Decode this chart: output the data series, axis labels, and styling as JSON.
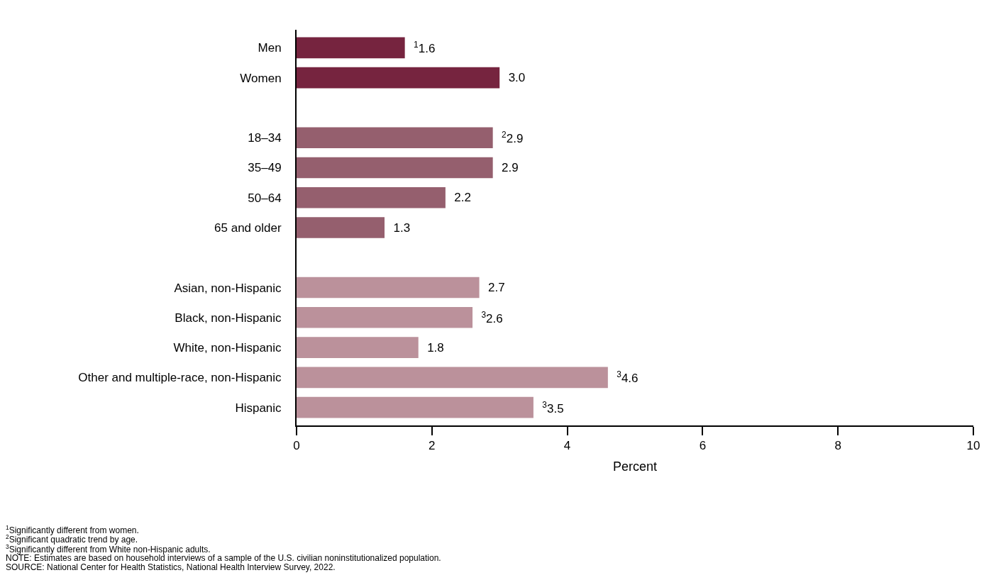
{
  "chart_data": {
    "type": "bar",
    "orientation": "horizontal",
    "categories": [
      "Men",
      "Women",
      null,
      "18–34",
      "35–49",
      "50–64",
      "65 and older",
      null,
      "Asian, non-Hispanic",
      "Black, non-Hispanic",
      "White, non-Hispanic",
      "Other and multiple-race, non-Hispanic",
      "Hispanic"
    ],
    "values": [
      1.6,
      3.0,
      null,
      2.9,
      2.9,
      2.2,
      1.3,
      null,
      2.7,
      2.6,
      1.8,
      4.6,
      3.5
    ],
    "value_labels": [
      "$^{1}$1.6",
      "3.0",
      null,
      "$^{2}$2.9",
      "2.9",
      "2.2",
      "1.3",
      null,
      "2.7",
      "$^{3}$2.6",
      "1.8",
      "$^{3}$4.6",
      "$^{3}$3.5"
    ],
    "colors": [
      "#76243f",
      "#76243f",
      null,
      "#955f6e",
      "#955f6e",
      "#955f6e",
      "#955f6e",
      null,
      "#bb919b",
      "#bb919b",
      "#bb919b",
      "#bb919b",
      "#bb919b"
    ],
    "xlim": [
      0,
      10
    ],
    "xticks": [
      0,
      2,
      4,
      6,
      8,
      10
    ],
    "xlabel": "Percent",
    "grid": false,
    "annotations": [
      "$^{1}$Significantly different from women.",
      "$^{2}$Significant quadratic trend by age.",
      "$^{3}$Significantly different from White non-Hispanic adults.",
      "NOTE: Estimates are based on household interviews of a sample of the U.S. civilian noninstitutionalized population.",
      "SOURCE: National Center for Health Statistics, National Health Interview Survey, 2022."
    ]
  }
}
